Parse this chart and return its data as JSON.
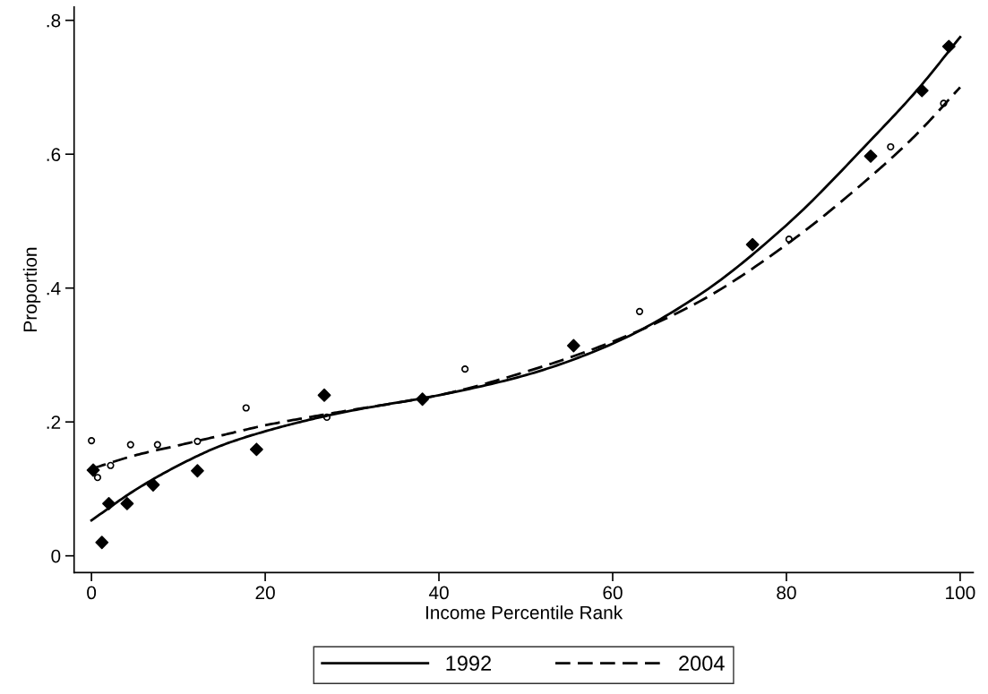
{
  "chart_data": {
    "type": "scatter",
    "xlabel": "Income Percentile Rank",
    "ylabel": "Proportion",
    "xlim": [
      -2,
      101.5
    ],
    "xticks": [
      0,
      20,
      40,
      60,
      80,
      100
    ],
    "ylim": [
      -0.025,
      0.82
    ],
    "yticks": [
      {
        "value": 0,
        "label": "0"
      },
      {
        "value": 0.2,
        "label": ".2"
      },
      {
        "value": 0.4,
        "label": ".4"
      },
      {
        "value": 0.6,
        "label": ".6"
      },
      {
        "value": 0.8,
        "label": ".8"
      }
    ],
    "grid": false,
    "legend": "bottom",
    "series": [
      {
        "marker": "diamond",
        "color": "#000000",
        "x": [
          0.2,
          1.2,
          2.0,
          4.1,
          7.1,
          12.2,
          19,
          26.8,
          38.1,
          55.5,
          76.1,
          89.7,
          95.6,
          98.7
        ],
        "values": [
          0.128,
          0.02,
          0.078,
          0.078,
          0.106,
          0.127,
          0.159,
          0.24,
          0.234,
          0.314,
          0.465,
          0.597,
          0.695,
          0.761
        ]
      },
      {
        "marker": "circle",
        "color": "#000000",
        "x": [
          0,
          0.7,
          2.2,
          4.5,
          7.6,
          12.2,
          17.8,
          27.1,
          43,
          63.1,
          80.3,
          92,
          98.1
        ],
        "values": [
          0.172,
          0.117,
          0.135,
          0.166,
          0.166,
          0.171,
          0.221,
          0.207,
          0.279,
          0.365,
          0.473,
          0.611,
          0.676
        ]
      },
      {
        "type": "line",
        "name": "1992",
        "line_style": "solid",
        "color": "#000000",
        "x": [
          0,
          5,
          10,
          15,
          20,
          25,
          30,
          40,
          50,
          60,
          70,
          80,
          90,
          95,
          100
        ],
        "values": [
          0.053,
          0.098,
          0.135,
          0.165,
          0.186,
          0.203,
          0.217,
          0.24,
          0.27,
          0.317,
          0.39,
          0.494,
          0.625,
          0.695,
          0.775
        ]
      },
      {
        "type": "line",
        "name": "2004",
        "line_style": "dashed",
        "color": "#000000",
        "x": [
          0,
          5,
          10,
          15,
          20,
          25,
          30,
          40,
          50,
          60,
          70,
          80,
          90,
          95,
          100
        ],
        "values": [
          0.13,
          0.15,
          0.165,
          0.18,
          0.195,
          0.207,
          0.218,
          0.24,
          0.275,
          0.32,
          0.38,
          0.465,
          0.57,
          0.63,
          0.7
        ]
      }
    ]
  }
}
